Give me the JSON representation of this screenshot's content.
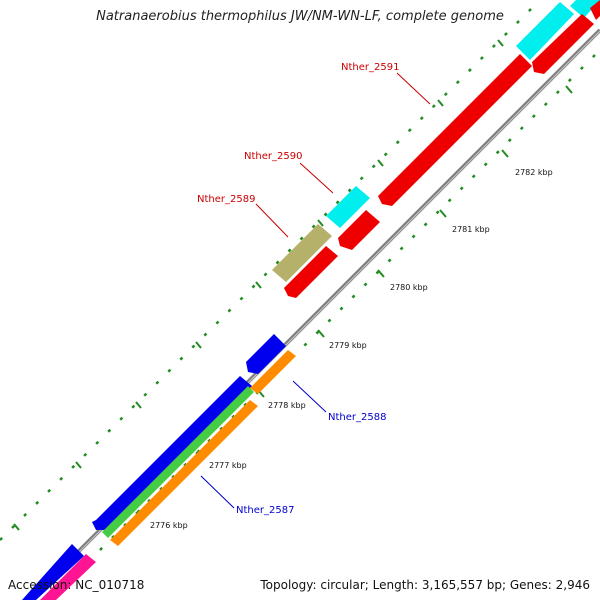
{
  "title": "Natranaerobius thermophilus JW/NM-WN-LF, complete genome",
  "footer": {
    "accession": "Accession: NC_010718",
    "summary": "Topology: circular; Length: 3,165,557 bp; Genes: 2,946"
  },
  "ticks": [
    "2776 kbp",
    "2777 kbp",
    "2778 kbp",
    "2779 kbp",
    "2780 kbp",
    "2781 kbp",
    "2782 kbp"
  ],
  "gene_labels": [
    {
      "name": "Nther_2591",
      "color": "#cc0000"
    },
    {
      "name": "Nther_2590",
      "color": "#cc0000"
    },
    {
      "name": "Nther_2589",
      "color": "#cc0000"
    },
    {
      "name": "Nther_2588",
      "color": "#0000cc"
    },
    {
      "name": "Nther_2587",
      "color": "#0000cc"
    }
  ],
  "colors": {
    "backbone": "#808080",
    "tick_mark": "#228b22",
    "cds_forward": "#0000ee",
    "cds_reverse": "#ee0000",
    "trna": "#00eeee",
    "rrna": "#b5b06a",
    "orange_track": "#ff8c00",
    "green_track": "#44cc44",
    "pink_track": "#ff1493"
  }
}
